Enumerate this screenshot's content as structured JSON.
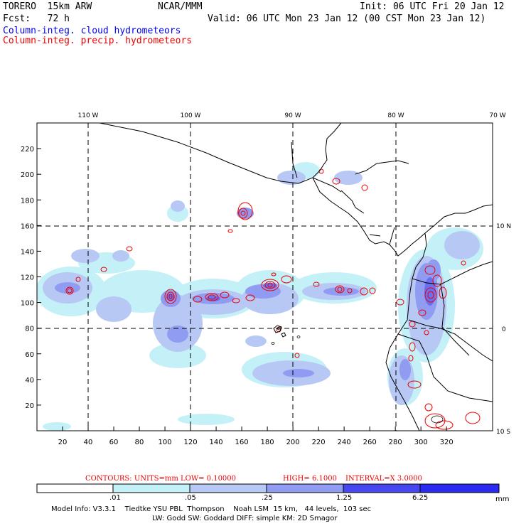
{
  "header": {
    "model": "TORERO  15km ARW",
    "center": "NCAR/MMM",
    "init": "Init: 06 UTC Fri 20 Jan 12",
    "fcst": "Fcst:   72 h",
    "valid": "Valid: 06 UTC Mon 23 Jan 12 (00 CST Mon 23 Jan 12)",
    "field1": "Column-integ. cloud hydrometeors",
    "field2": "Column-integ. precip. hydrometeors"
  },
  "colors": {
    "field1": "#0000ee",
    "field2": "#ee0000",
    "shade_levels": [
      "#ffffff",
      "#c4f0f8",
      "#b8c8f4",
      "#8f9cf2",
      "#6a6ef0",
      "#4747f2",
      "#2a2af0"
    ]
  },
  "map": {
    "top_lon_labels": [
      "110 W",
      "100 W",
      "90 W",
      "80 W",
      "70 W"
    ],
    "right_lat_labels": [
      "10 N",
      "0",
      "10 S"
    ],
    "y_ticks": [
      "20",
      "40",
      "60",
      "80",
      "100",
      "120",
      "140",
      "160",
      "180",
      "200",
      "220"
    ],
    "x_ticks": [
      "20",
      "40",
      "60",
      "80",
      "100",
      "120",
      "140",
      "160",
      "180",
      "200",
      "220",
      "240",
      "260",
      "280",
      "300",
      "320"
    ],
    "contours_note": "CONTOURS:  UNITS=mm  LOW= 0.10000",
    "contours_high": "HIGH=  6.1000",
    "contours_interval": "INTERVAL=X  3.0000"
  },
  "colorbar": {
    "labels": [
      ".01",
      ".05",
      ".25",
      "1.25",
      "6.25"
    ],
    "unit": "mm"
  },
  "footer": {
    "line1": "Model Info: V3.3.1    Tiedtke YSU PBL  Thompson    Noah LSM  15 km,   44 levels,  103 sec",
    "line2": "LW: Godd SW: Goddard DIFF: simple KM: 2D Smagor"
  }
}
